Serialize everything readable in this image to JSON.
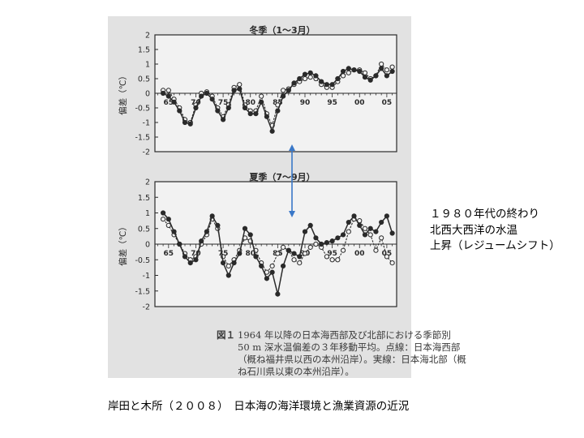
{
  "chart_data": [
    {
      "type": "line",
      "title": "冬季（1～3月）",
      "ylabel": "偏差（℃）",
      "ylim": [
        -2,
        2
      ],
      "yticks": [
        "2",
        "1.5",
        "1",
        "0.5",
        "0",
        "-0.5",
        "-1",
        "-1.5",
        "-2"
      ],
      "xticks": [
        "65",
        "70",
        "75",
        "80",
        "85",
        "90",
        "95",
        "00",
        "05"
      ],
      "x": [
        1964,
        1965,
        1966,
        1967,
        1968,
        1969,
        1970,
        1971,
        1972,
        1973,
        1974,
        1975,
        1976,
        1977,
        1978,
        1979,
        1980,
        1981,
        1982,
        1983,
        1984,
        1985,
        1986,
        1987,
        1988,
        1989,
        1990,
        1991,
        1992,
        1993,
        1994,
        1995,
        1996,
        1997,
        1998,
        1999,
        2000,
        2001,
        2002,
        2003,
        2004,
        2005,
        2006
      ],
      "series": [
        {
          "name": "西部（点線）",
          "style": "open",
          "values": [
            0.1,
            0.1,
            -0.2,
            -0.5,
            -0.9,
            -1.0,
            -0.4,
            0.0,
            0.05,
            -0.1,
            -0.5,
            -0.8,
            -0.4,
            0.2,
            0.3,
            -0.4,
            -0.6,
            -0.6,
            -0.1,
            -0.7,
            -1.1,
            -0.4,
            0.1,
            0.15,
            0.3,
            0.4,
            0.5,
            0.55,
            0.5,
            0.3,
            0.2,
            0.2,
            0.4,
            0.6,
            0.7,
            0.8,
            0.8,
            0.7,
            0.5,
            0.6,
            1.0,
            0.8,
            0.9
          ]
        },
        {
          "name": "北部（実線）",
          "style": "filled",
          "values": [
            0.0,
            -0.1,
            -0.3,
            -0.6,
            -1.0,
            -1.05,
            -0.5,
            -0.1,
            0.0,
            -0.2,
            -0.6,
            -0.9,
            -0.5,
            0.1,
            0.15,
            -0.5,
            -0.7,
            -0.7,
            -0.3,
            -0.8,
            -1.3,
            -0.6,
            -0.1,
            0.1,
            0.35,
            0.5,
            0.65,
            0.7,
            0.6,
            0.4,
            0.3,
            0.3,
            0.5,
            0.75,
            0.85,
            0.8,
            0.75,
            0.55,
            0.45,
            0.6,
            0.85,
            0.6,
            0.75
          ]
        }
      ]
    },
    {
      "type": "line",
      "title": "夏季（7～9月）",
      "ylabel": "偏差（℃）",
      "ylim": [
        -2,
        2
      ],
      "yticks": [
        "2",
        "1.5",
        "1",
        "0.5",
        "0",
        "-0.5",
        "-1",
        "-1.5",
        "-2"
      ],
      "xticks": [
        "65",
        "70",
        "75",
        "80",
        "85",
        "90",
        "95",
        "00",
        "05"
      ],
      "x": [
        1964,
        1965,
        1966,
        1967,
        1968,
        1969,
        1970,
        1971,
        1972,
        1973,
        1974,
        1975,
        1976,
        1977,
        1978,
        1979,
        1980,
        1981,
        1982,
        1983,
        1984,
        1985,
        1986,
        1987,
        1988,
        1989,
        1990,
        1991,
        1992,
        1993,
        1994,
        1995,
        1996,
        1997,
        1998,
        1999,
        2000,
        2001,
        2002,
        2003,
        2004,
        2005,
        2006
      ],
      "series": [
        {
          "name": "西部（点線）",
          "style": "open",
          "values": [
            0.8,
            0.6,
            0.3,
            0.0,
            -0.3,
            -0.5,
            -0.4,
            0.0,
            0.3,
            0.8,
            0.5,
            -0.4,
            -0.7,
            -0.5,
            -0.2,
            0.2,
            0.1,
            -0.2,
            -0.6,
            -0.9,
            -0.7,
            -0.3,
            -0.1,
            -0.2,
            -0.5,
            -0.6,
            -0.3,
            -0.1,
            0.0,
            -0.1,
            -0.4,
            -0.5,
            -0.5,
            -0.2,
            0.4,
            0.8,
            0.75,
            0.5,
            0.3,
            -0.2,
            0.2,
            -0.4,
            -0.6
          ]
        },
        {
          "name": "北部（実線）",
          "style": "filled",
          "values": [
            1.0,
            0.8,
            0.4,
            0.0,
            -0.4,
            -0.6,
            -0.5,
            0.1,
            0.4,
            0.9,
            0.6,
            -0.6,
            -1.0,
            -0.6,
            -0.3,
            0.5,
            0.3,
            -0.4,
            -0.7,
            -1.1,
            -0.9,
            -1.6,
            -0.7,
            -0.2,
            -0.3,
            -0.4,
            0.4,
            0.6,
            0.2,
            0.0,
            0.05,
            0.1,
            0.2,
            0.3,
            0.7,
            0.9,
            0.6,
            0.3,
            0.5,
            0.4,
            0.7,
            0.9,
            0.35
          ]
        }
      ]
    }
  ],
  "caption": {
    "figure_label": "図１",
    "lines": [
      "1964 年以降の日本海西部及び北部における季節別",
      "50 m 深水温偏差の３年移動平均。点線：日本海西部",
      "（概ね福井県以西の本州沿岸）。実線：日本海北部（概",
      "ね石川県以東の本州沿岸）。"
    ]
  },
  "note_lines": [
    "１９８０年代の終わり",
    "北西大西洋の水温",
    "上昇（レジュームシフト）"
  ],
  "source_text": "岸田と木所（２００８）　日本海の海洋環境と漁業資源の近況",
  "colors": {
    "scan_background": "#e2e2e2",
    "plot_background": "#f2f2f2",
    "ink": "#2a2a2a",
    "arrow": "#3a78c8"
  }
}
